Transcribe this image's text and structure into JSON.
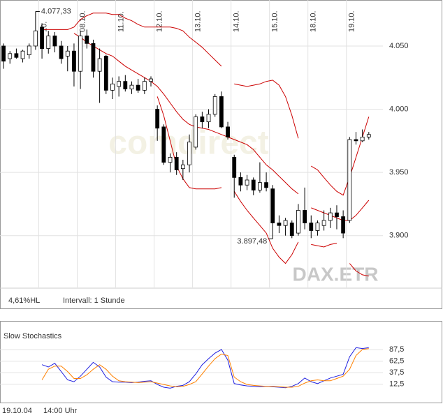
{
  "chart_data": [
    {
      "type": "candlestick",
      "xlim": [
        -0.55,
        59.2
      ],
      "ylim": [
        3859,
        4086.4
      ],
      "yticks": [
        {
          "value": 4050,
          "label": "4.050"
        },
        {
          "value": 4000,
          "label": "4.000"
        },
        {
          "value": 3950,
          "label": "3.950"
        },
        {
          "value": 3900,
          "label": "3.900"
        }
      ],
      "xticks": [
        {
          "value": 5.5,
          "label": "10."
        },
        {
          "value": 11.5,
          "label": "08.10."
        },
        {
          "value": 17.5,
          "label": "11.10."
        },
        {
          "value": 23.5,
          "label": "12.10."
        },
        {
          "value": 29.5,
          "label": "13.10."
        },
        {
          "value": 35.5,
          "label": "14.10."
        },
        {
          "value": 41.5,
          "label": "15.10."
        },
        {
          "value": 47.5,
          "label": "18.10."
        },
        {
          "value": 53.5,
          "label": "19.10."
        }
      ],
      "grid": true,
      "up_color": "#ffffff",
      "down_color": "#000000",
      "open": [
        4050,
        4040,
        4044,
        4040,
        4043,
        4050,
        4065,
        4048,
        4058,
        4050,
        4042,
        4046,
        4030,
        4058,
        4052,
        4030,
        4042,
        4015,
        4018,
        4022,
        4016,
        4019,
        4015,
        4022,
        4000,
        3986,
        3958,
        3962,
        3953,
        3956,
        3970,
        3994,
        3990,
        3996,
        4010,
        3986,
        3962,
        3946,
        3940,
        3944,
        3936,
        3942,
        3937,
        3910,
        3908,
        3910,
        3902,
        3920,
        3910,
        3904,
        3908,
        3912,
        3918,
        3915,
        3912,
        3976,
        3975,
        3978
      ],
      "high": [
        4052,
        4046,
        4048,
        4047,
        4052,
        4077.33,
        4068,
        4062,
        4061,
        4054,
        4050,
        4052,
        4062,
        4063,
        4055,
        4048,
        4043,
        4025,
        4026,
        4027,
        4022,
        4024,
        4025,
        4026,
        4003,
        3988,
        3965,
        3966,
        3960,
        3980,
        3996,
        3998,
        4000,
        4012,
        4014,
        3990,
        3964,
        3950,
        3948,
        3946,
        3958,
        3950,
        3940,
        3916,
        3914,
        3912,
        3925,
        3938,
        3916,
        3912,
        3920,
        3922,
        3924,
        3920,
        3978,
        3982,
        3984,
        3982
      ],
      "low": [
        4032,
        4036,
        4040,
        4037,
        4040,
        4047,
        4040,
        4044,
        4045,
        4036,
        4030,
        4018,
        4016,
        4048,
        4025,
        4005,
        4012,
        4008,
        4010,
        4014,
        4012,
        4013,
        4012,
        4018,
        3975,
        3956,
        3950,
        3948,
        3944,
        3950,
        3968,
        3985,
        3985,
        3994,
        3985,
        3976,
        3930,
        3935,
        3936,
        3932,
        3934,
        3935,
        3897.48,
        3902,
        3900,
        3898,
        3900,
        3905,
        3898,
        3900,
        3904,
        3906,
        3905,
        3898,
        3910,
        3972,
        3974,
        3976
      ],
      "close": [
        4038,
        4044,
        4041,
        4046,
        4050,
        4062,
        4048,
        4058,
        4050,
        4040,
        4046,
        4030,
        4058,
        4052,
        4030,
        4040,
        4015,
        4020,
        4022,
        4016,
        4019,
        4015,
        4022,
        4024,
        3985,
        3958,
        3962,
        3952,
        3956,
        3974,
        3994,
        3990,
        3996,
        4010,
        3986,
        3978,
        3946,
        3940,
        3944,
        3936,
        3942,
        3938,
        3910,
        3908,
        3912,
        3900,
        3920,
        3910,
        3904,
        3910,
        3912,
        3918,
        3915,
        3902,
        3976,
        3975,
        3978,
        3980
      ],
      "overlays": [
        {
          "color": "#cc0000",
          "values": [
            null,
            null,
            null,
            null,
            null,
            null,
            4063,
            4063,
            4063,
            4063,
            4063,
            4065,
            4071,
            4074,
            4076,
            4076,
            4076,
            4075,
            4075,
            4072,
            4070,
            4067,
            4065,
            4065,
            4065,
            4065,
            4065,
            4064,
            4062,
            4057,
            4053,
            4049,
            4044,
            4039,
            4034,
            null,
            4020,
            4019,
            4018,
            4019,
            4020,
            4022,
            4023,
            4019,
            4010,
            3995,
            3977,
            null,
            3955,
            3952,
            3946,
            3940,
            3935,
            3932,
            3946,
            3962,
            3978,
            3994
          ]
        },
        {
          "color": "#cc0000",
          "values": [
            null,
            null,
            null,
            null,
            null,
            null,
            null,
            null,
            null,
            null,
            null,
            4060,
            4057,
            4053,
            4050,
            4047,
            4044,
            4042,
            4038,
            4034,
            4031,
            4028,
            4025,
            4022,
            4018,
            4012,
            4005,
            3998,
            3992,
            3988,
            3986,
            3985,
            3984,
            3982,
            3980,
            3978,
            3976,
            3974,
            3972,
            3968,
            3962,
            3956,
            3952,
            3947,
            3942,
            3937,
            3933,
            null,
            3922,
            3920,
            3918,
            3916,
            3914,
            3912,
            3912,
            3916,
            3922,
            3928
          ]
        },
        {
          "color": "#cc0000",
          "values": [
            null,
            null,
            null,
            null,
            null,
            null,
            null,
            null,
            null,
            null,
            null,
            null,
            null,
            null,
            null,
            null,
            null,
            null,
            null,
            null,
            null,
            null,
            null,
            null,
            4010,
            3995,
            3975,
            3955,
            3945,
            3938,
            3937,
            3937,
            3937,
            3937,
            3938,
            null,
            3935,
            3927,
            3920,
            3914,
            3908,
            3902,
            3890,
            3883,
            3878,
            3885,
            3895,
            null,
            3893,
            3892,
            3891,
            3893,
            3894,
            null,
            3878,
            3872,
            3869,
            3868
          ]
        }
      ],
      "annotations": [
        {
          "x": 5,
          "value": 4077.33,
          "label": "4.077,33"
        },
        {
          "x": 42,
          "value": 3897.48,
          "label": "3.897,48"
        }
      ],
      "watermark": "comdirect",
      "symbol": "DAX.ETR",
      "info": [
        "4,61%HL",
        "Intervall: 1 Stunde"
      ]
    },
    {
      "type": "line",
      "title": "Slow Stochastics",
      "xlim": [
        -0.55,
        59.2
      ],
      "ylim": [
        0,
        100
      ],
      "yticks": [
        {
          "value": 87.5,
          "label": "87,5"
        },
        {
          "value": 62.5,
          "label": "62,5"
        },
        {
          "value": 37.5,
          "label": "37,5"
        },
        {
          "value": 12.5,
          "label": "12,5"
        }
      ],
      "grid": true,
      "series": [
        {
          "color": "#2020e0",
          "values": [
            null,
            null,
            null,
            null,
            null,
            null,
            55,
            50,
            58,
            40,
            22,
            18,
            30,
            45,
            60,
            50,
            28,
            18,
            17,
            17,
            16,
            17,
            19,
            20,
            12,
            6,
            4,
            8,
            10,
            18,
            35,
            55,
            68,
            80,
            88,
            65,
            14,
            11,
            9,
            8,
            7,
            8,
            7,
            6,
            5,
            8,
            14,
            26,
            18,
            14,
            20,
            26,
            30,
            34,
            72,
            92,
            90,
            92
          ]
        },
        {
          "color": "#ff8000",
          "values": [
            null,
            null,
            null,
            null,
            null,
            null,
            22,
            45,
            52,
            52,
            40,
            25,
            25,
            33,
            45,
            55,
            45,
            30,
            20,
            18,
            17,
            16,
            17,
            18,
            15,
            12,
            9,
            7,
            8,
            12,
            18,
            35,
            52,
            68,
            78,
            75,
            28,
            18,
            12,
            10,
            9,
            8,
            8,
            7,
            6,
            6,
            8,
            15,
            20,
            22,
            20,
            20,
            25,
            30,
            45,
            75,
            88,
            90
          ]
        }
      ]
    }
  ],
  "footer": {
    "date": "19.10.04",
    "time": "14:00 Uhr"
  }
}
